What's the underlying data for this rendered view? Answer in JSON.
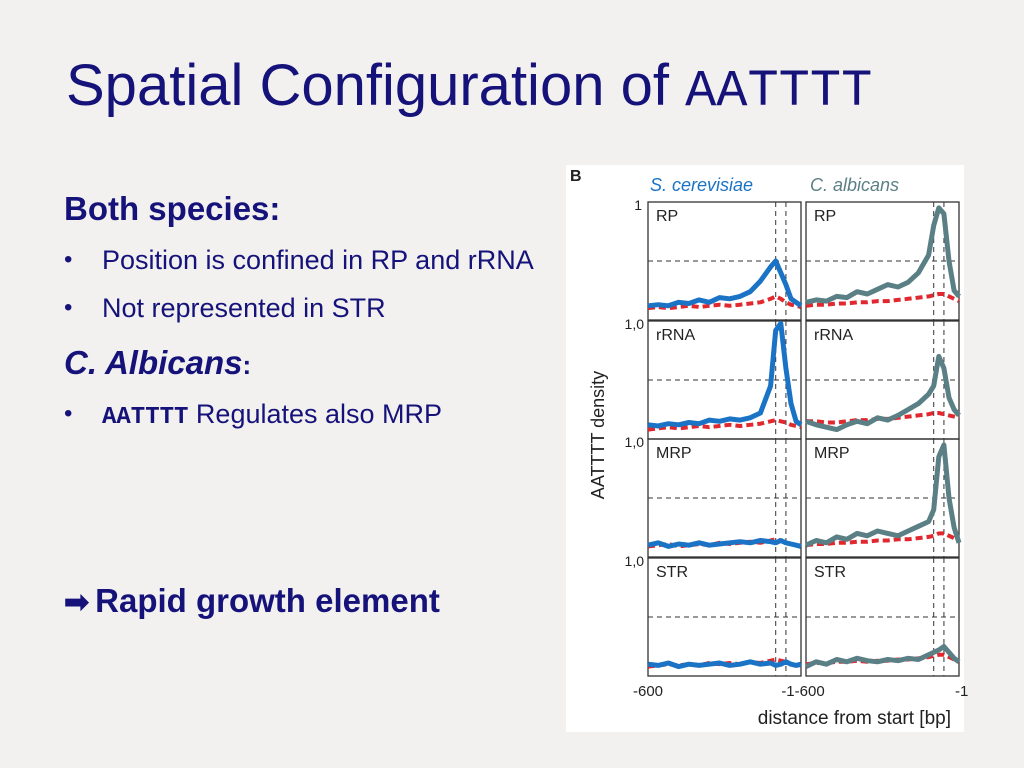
{
  "slide": {
    "title_text": "Spatial Configuration of ",
    "title_mono": "AATTTT",
    "heading1": "Both species:",
    "bullets1": [
      "Position is confined in  RP and rRNA",
      "Not represented in STR"
    ],
    "heading2": "C. Albicans",
    "heading2_colon": ":",
    "bullet2_mono": "AATTTT",
    "bullet2_text": " Regulates also MRP",
    "conclusion": "Rapid growth element",
    "bullet_glyph": "•",
    "arrow_glyph": "➡"
  },
  "chart_data": {
    "type": "line",
    "panel_label": "B",
    "columns": [
      "S. cerevisiae",
      "C. albicans"
    ],
    "rows": [
      "RP",
      "rRNA",
      "MRP",
      "STR"
    ],
    "ylabel": "AATTTT density",
    "y_tick_top": "1",
    "y_tick_labels": [
      "1,0",
      "1,0",
      "1,0"
    ],
    "x_tick_left": "-600",
    "x_tick_middle": "-1-600",
    "x_tick_right": "-1",
    "xlabel": "distance from start [bp]",
    "xlim": [
      -600,
      -1
    ],
    "ylim": [
      0,
      1
    ],
    "x": [
      -600,
      -560,
      -520,
      -480,
      -440,
      -400,
      -360,
      -320,
      -280,
      -240,
      -200,
      -160,
      -120,
      -100,
      -80,
      -60,
      -40,
      -20,
      -1
    ],
    "series": {
      "S. cerevisiae": {
        "RP": [
          0.12,
          0.13,
          0.12,
          0.15,
          0.14,
          0.17,
          0.15,
          0.19,
          0.18,
          0.2,
          0.24,
          0.33,
          0.45,
          0.5,
          0.4,
          0.3,
          0.18,
          0.15,
          0.12
        ],
        "rRNA": [
          0.12,
          0.11,
          0.13,
          0.12,
          0.14,
          0.13,
          0.16,
          0.15,
          0.17,
          0.16,
          0.18,
          0.22,
          0.45,
          0.92,
          0.98,
          0.6,
          0.3,
          0.15,
          0.12
        ],
        "MRP": [
          0.1,
          0.12,
          0.09,
          0.11,
          0.1,
          0.12,
          0.1,
          0.11,
          0.12,
          0.13,
          0.12,
          0.14,
          0.13,
          0.12,
          0.14,
          0.12,
          0.11,
          0.1,
          0.09
        ],
        "STR": [
          0.1,
          0.09,
          0.11,
          0.08,
          0.1,
          0.09,
          0.1,
          0.11,
          0.09,
          0.1,
          0.12,
          0.1,
          0.11,
          0.09,
          0.1,
          0.12,
          0.1,
          0.09,
          0.1
        ]
      },
      "S. cerevisiae background": {
        "RP": [
          0.1,
          0.11,
          0.1,
          0.11,
          0.12,
          0.11,
          0.12,
          0.13,
          0.12,
          0.13,
          0.14,
          0.15,
          0.18,
          0.2,
          0.18,
          0.15,
          0.13,
          0.12,
          0.11
        ],
        "rRNA": [
          0.08,
          0.09,
          0.1,
          0.09,
          0.1,
          0.11,
          0.1,
          0.11,
          0.12,
          0.11,
          0.12,
          0.13,
          0.15,
          0.16,
          0.15,
          0.14,
          0.12,
          0.11,
          0.1
        ],
        "MRP": [
          0.09,
          0.1,
          0.11,
          0.09,
          0.1,
          0.11,
          0.1,
          0.12,
          0.11,
          0.12,
          0.13,
          0.12,
          0.14,
          0.15,
          0.14,
          0.12,
          0.11,
          0.1,
          0.1
        ],
        "STR": [
          0.08,
          0.09,
          0.1,
          0.09,
          0.1,
          0.09,
          0.11,
          0.1,
          0.11,
          0.1,
          0.12,
          0.11,
          0.13,
          0.14,
          0.13,
          0.12,
          0.1,
          0.09,
          0.09
        ]
      },
      "C. albicans": {
        "RP": [
          0.15,
          0.17,
          0.16,
          0.2,
          0.19,
          0.24,
          0.22,
          0.26,
          0.3,
          0.28,
          0.32,
          0.4,
          0.55,
          0.8,
          0.95,
          0.9,
          0.5,
          0.25,
          0.2
        ],
        "rRNA": [
          0.15,
          0.12,
          0.1,
          0.08,
          0.12,
          0.15,
          0.13,
          0.18,
          0.16,
          0.2,
          0.25,
          0.3,
          0.38,
          0.45,
          0.7,
          0.6,
          0.35,
          0.25,
          0.2
        ],
        "MRP": [
          0.1,
          0.14,
          0.12,
          0.17,
          0.15,
          0.2,
          0.18,
          0.22,
          0.2,
          0.18,
          0.22,
          0.26,
          0.3,
          0.4,
          0.85,
          0.95,
          0.5,
          0.25,
          0.12
        ],
        "STR": [
          0.08,
          0.12,
          0.1,
          0.14,
          0.12,
          0.15,
          0.13,
          0.12,
          0.14,
          0.13,
          0.15,
          0.14,
          0.18,
          0.2,
          0.22,
          0.25,
          0.2,
          0.15,
          0.12
        ]
      },
      "C. albicans background": {
        "RP": [
          0.12,
          0.13,
          0.13,
          0.14,
          0.14,
          0.15,
          0.15,
          0.16,
          0.16,
          0.17,
          0.18,
          0.19,
          0.2,
          0.21,
          0.22,
          0.22,
          0.2,
          0.18,
          0.16
        ],
        "rRNA": [
          0.15,
          0.15,
          0.14,
          0.14,
          0.15,
          0.16,
          0.16,
          0.17,
          0.17,
          0.18,
          0.19,
          0.2,
          0.21,
          0.22,
          0.22,
          0.21,
          0.2,
          0.19,
          0.18
        ],
        "MRP": [
          0.1,
          0.11,
          0.11,
          0.12,
          0.12,
          0.13,
          0.13,
          0.14,
          0.14,
          0.15,
          0.15,
          0.16,
          0.17,
          0.18,
          0.2,
          0.2,
          0.18,
          0.16,
          0.14
        ],
        "STR": [
          0.1,
          0.11,
          0.11,
          0.12,
          0.12,
          0.13,
          0.12,
          0.13,
          0.13,
          0.14,
          0.14,
          0.15,
          0.16,
          0.17,
          0.18,
          0.18,
          0.16,
          0.14,
          0.12
        ]
      }
    },
    "dashed_guides_y": [
      0.5
    ],
    "dashed_guides_x": [
      -100,
      -60
    ],
    "colors": {
      "S. cerevisiae": "#1a73c4",
      "C. albicans": "#5a7f85",
      "background": "#e0282e",
      "column_label": "#1a73c4",
      "column_label_2": "#5a7f85"
    }
  }
}
